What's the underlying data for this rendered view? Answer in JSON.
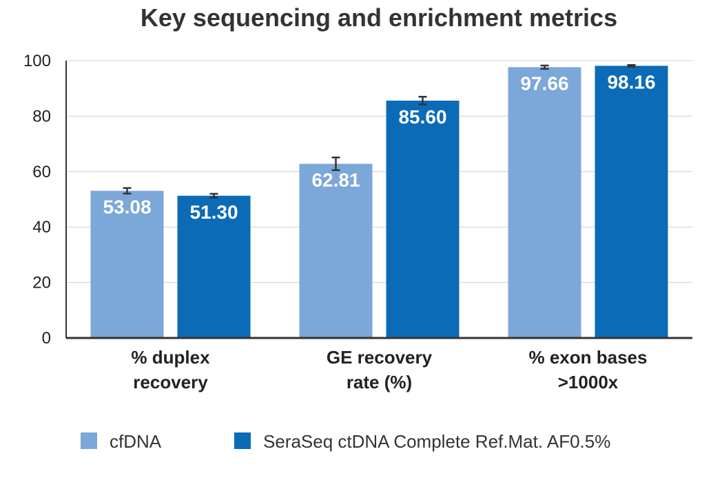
{
  "chart_data": {
    "type": "bar",
    "title": "Key sequencing and enrichment metrics",
    "categories": [
      [
        "% duplex",
        "recovery"
      ],
      [
        "GE recovery",
        "rate (%)"
      ],
      [
        "% exon bases",
        ">1000x"
      ]
    ],
    "series": [
      {
        "name": "cfDNA",
        "color": "#7ba7d9",
        "values": [
          53.08,
          62.81,
          97.66
        ],
        "labels": [
          "53.08",
          "62.81",
          "97.66"
        ],
        "errors": [
          1.0,
          2.3,
          0.6
        ]
      },
      {
        "name": "SeraSeq ctDNA Complete Ref.Mat. AF0.5%",
        "color": "#0b6bb7",
        "values": [
          51.3,
          85.6,
          98.16
        ],
        "labels": [
          "51.30",
          "85.60",
          "98.16"
        ],
        "errors": [
          0.7,
          1.4,
          0.3
        ]
      }
    ],
    "ylim": [
      0,
      100
    ],
    "yticks": [
      "0",
      "20",
      "40",
      "60",
      "80",
      "100"
    ],
    "xlabel": "",
    "ylabel": "",
    "grid": true,
    "legend_position": "bottom"
  }
}
